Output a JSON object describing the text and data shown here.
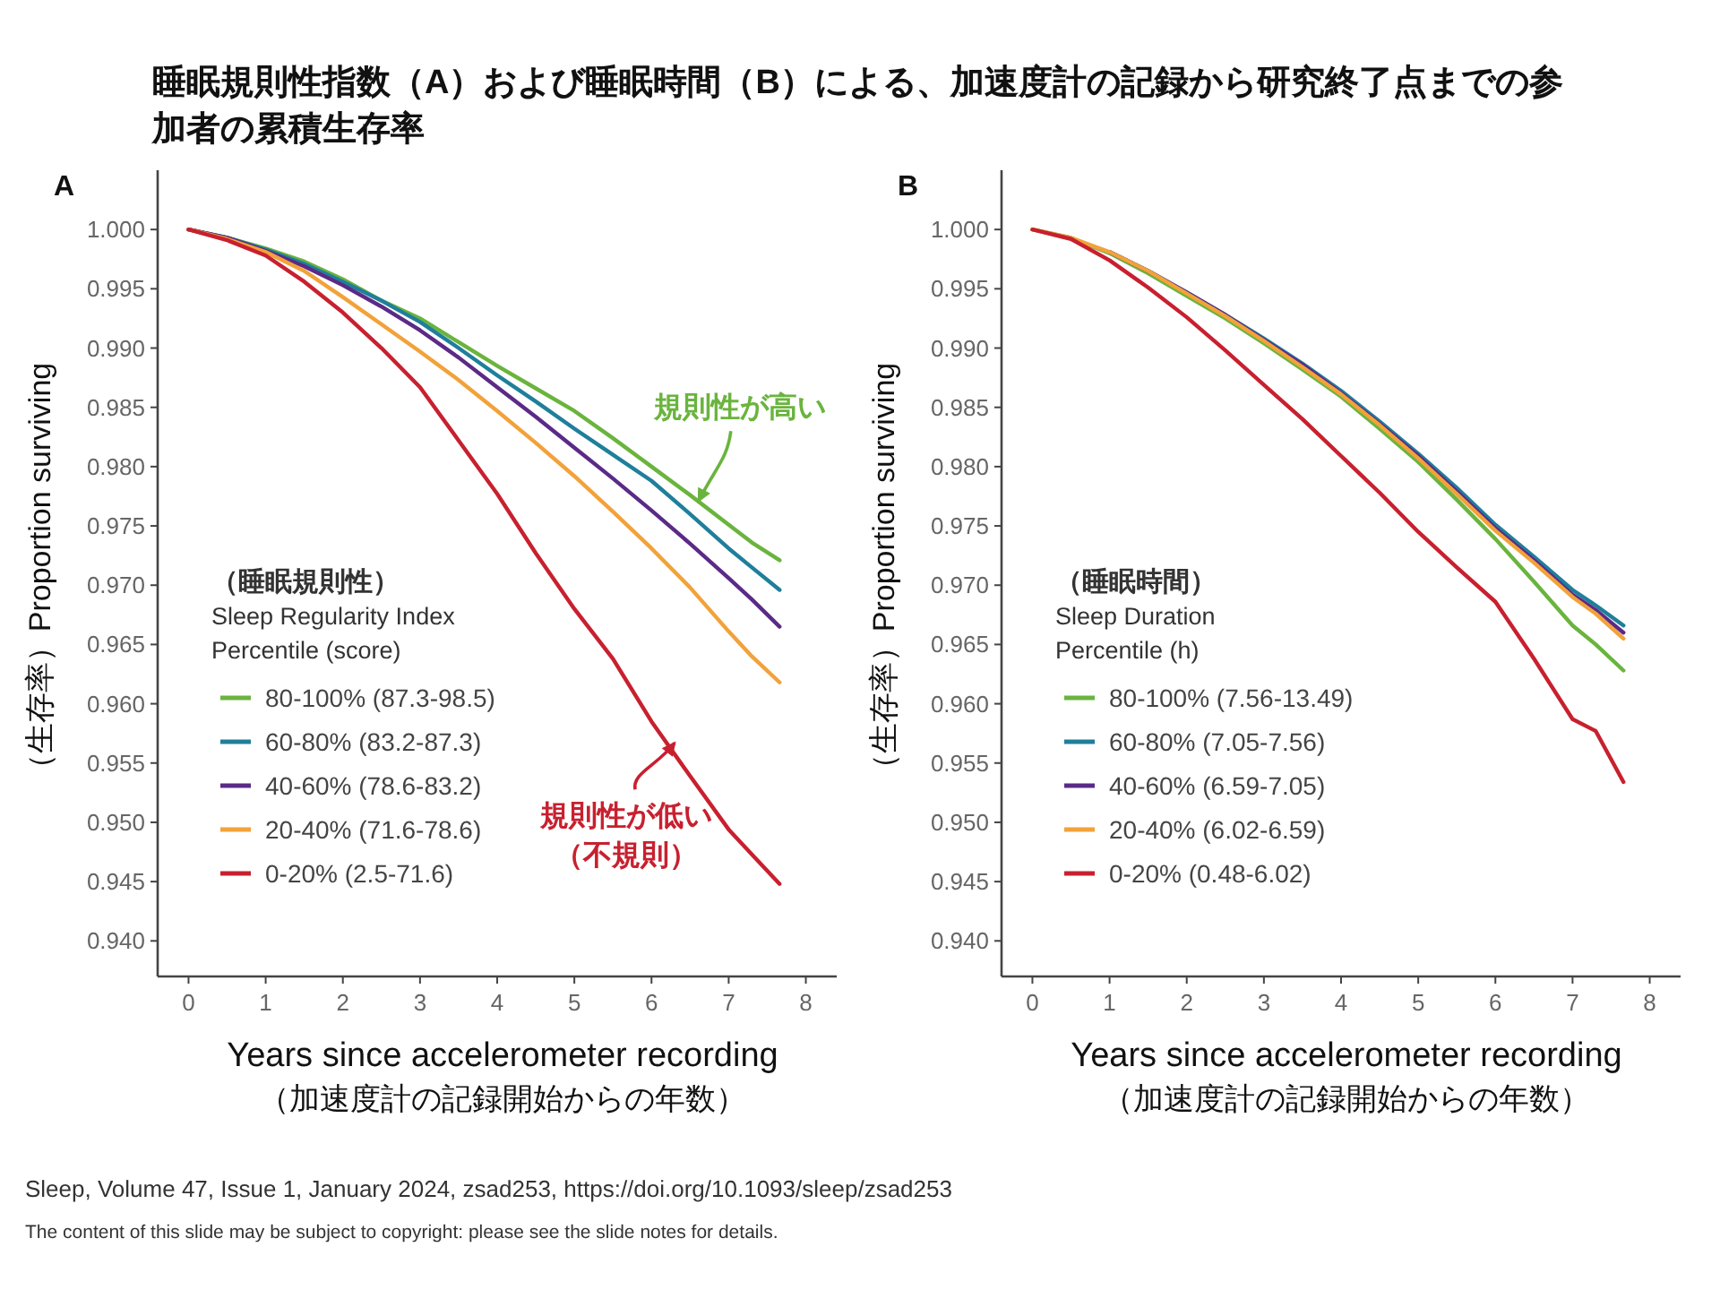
{
  "chart_data": [
    {
      "type": "line",
      "title": "睡眠規則性指数（A）および睡眠時間（B）による、加速度計の記録から研究終了点までの参加者の累積生存率",
      "subtitle": "A",
      "xlabel": "Years since accelerometer recording\n（加速度計の記録開始からの年数）",
      "ylabel": "（生存率）Proportion surviving",
      "legend_title": "（睡眠規則性）\nSleep Regularity Index\nPercentile (score)",
      "legend": "bottom left",
      "grid": false,
      "marker": "none",
      "line_style": "solid",
      "xlim": [
        -0.4,
        8.4
      ],
      "xticks": [
        0,
        1,
        2,
        3,
        4,
        5,
        6,
        7,
        8
      ],
      "ylim": [
        0.937,
        1.005
      ],
      "yticks": [
        {
          "value": 1.0,
          "label": "1.000"
        },
        0.995,
        {
          "value": 0.99,
          "label": "0.990"
        },
        0.985,
        {
          "value": 0.98,
          "label": "0.980"
        },
        0.975,
        {
          "value": 0.97,
          "label": "0.970"
        },
        0.965,
        {
          "value": 0.96,
          "label": "0.960"
        },
        0.955,
        {
          "value": 0.95,
          "label": "0.950"
        },
        0.945,
        {
          "value": 0.94,
          "label": "0.940"
        }
      ],
      "x": [
        0,
        0.5,
        1,
        1.5,
        2,
        2.5,
        3,
        3.5,
        4,
        4.5,
        5,
        5.5,
        6,
        6.5,
        7,
        7.3,
        7.66
      ],
      "series": [
        {
          "name": "80-100% (87.3-98.5)",
          "color": "#6ab43e",
          "values": [
            1.0,
            0.9993,
            0.9984,
            0.9973,
            0.9958,
            0.994,
            0.9925,
            0.9905,
            0.9885,
            0.9866,
            0.9847,
            0.9824,
            0.98,
            0.9776,
            0.9751,
            0.9736,
            0.9721
          ]
        },
        {
          "name": "60-80% (83.2-87.3)",
          "color": "#1f7f9b",
          "values": [
            1.0,
            0.9993,
            0.9983,
            0.9971,
            0.9956,
            0.994,
            0.9922,
            0.99,
            0.9877,
            0.9855,
            0.9832,
            0.981,
            0.9788,
            0.976,
            0.9731,
            0.9715,
            0.9696
          ]
        },
        {
          "name": "40-60% (78.6-83.2)",
          "color": "#5b2a86",
          "values": [
            1.0,
            0.9993,
            0.9982,
            0.9969,
            0.9953,
            0.9935,
            0.9915,
            0.9892,
            0.9867,
            0.9842,
            0.9816,
            0.979,
            0.9763,
            0.9735,
            0.9706,
            0.9688,
            0.9665
          ]
        },
        {
          "name": "20-40% (71.6-78.6)",
          "color": "#f2a23a",
          "values": [
            1.0,
            0.9992,
            0.9981,
            0.9965,
            0.9943,
            0.992,
            0.9897,
            0.9873,
            0.9847,
            0.982,
            0.9792,
            0.9762,
            0.9731,
            0.9698,
            0.9661,
            0.964,
            0.9618
          ]
        },
        {
          "name": "0-20% (2.5-71.6)",
          "color": "#c8202f",
          "values": [
            1.0,
            0.9991,
            0.9978,
            0.9956,
            0.993,
            0.99,
            0.9867,
            0.9822,
            0.9777,
            0.9727,
            0.968,
            0.9638,
            0.9585,
            0.9539,
            0.9494,
            0.9473,
            0.9448
          ]
        }
      ],
      "annotations": [
        {
          "text": "規則性が高い",
          "x": 6.61,
          "y": 0.9771
        },
        {
          "text": "規則性が低い（不規則）",
          "x": 6.3,
          "y": 0.9567
        }
      ]
    },
    {
      "type": "line",
      "subtitle": "B",
      "xlabel": "Years since accelerometer recording\n（加速度計の記録開始からの年数）",
      "ylabel": "（生存率）Proportion surviving",
      "legend_title": "（睡眠時間）\nSleep Duration\nPercentile (h)",
      "legend": "bottom left",
      "grid": false,
      "marker": "none",
      "line_style": "solid",
      "xlim": [
        -0.4,
        8.4
      ],
      "xticks": [
        0,
        1,
        2,
        3,
        4,
        5,
        6,
        7,
        8
      ],
      "ylim": [
        0.937,
        1.005
      ],
      "yticks": [
        {
          "value": 1.0,
          "label": "1.000"
        },
        0.995,
        {
          "value": 0.99,
          "label": "0.990"
        },
        0.985,
        {
          "value": 0.98,
          "label": "0.980"
        },
        0.975,
        {
          "value": 0.97,
          "label": "0.970"
        },
        0.965,
        {
          "value": 0.96,
          "label": "0.960"
        },
        0.955,
        {
          "value": 0.95,
          "label": "0.950"
        },
        0.945,
        {
          "value": 0.94,
          "label": "0.940"
        }
      ],
      "x": [
        0,
        0.5,
        1,
        1.5,
        2,
        2.5,
        3,
        3.5,
        4,
        4.5,
        5,
        5.5,
        6,
        6.5,
        7,
        7.3,
        7.66
      ],
      "series": [
        {
          "name": "80-100% (7.56-13.49)",
          "color": "#6ab43e",
          "values": [
            1.0,
            0.9993,
            0.998,
            0.9963,
            0.9944,
            0.9925,
            0.9904,
            0.9882,
            0.9859,
            0.9832,
            0.9804,
            0.9772,
            0.9739,
            0.9703,
            0.9666,
            0.965,
            0.9628
          ]
        },
        {
          "name": "60-80% (7.05-7.56)",
          "color": "#1f7f9b",
          "values": [
            null,
            null,
            0.9981,
            0.9965,
            0.9947,
            0.9928,
            0.9908,
            0.9887,
            0.9864,
            0.9838,
            0.9811,
            0.9782,
            0.9751,
            0.9724,
            0.9696,
            0.9683,
            0.9666
          ]
        },
        {
          "name": "40-60% (6.59-7.05)",
          "color": "#5b2a86",
          "values": [
            null,
            null,
            0.9981,
            0.9965,
            0.9947,
            0.9928,
            0.9907,
            0.9886,
            0.9862,
            0.9836,
            0.9809,
            0.9779,
            0.9748,
            0.9721,
            0.9692,
            0.9679,
            0.966
          ]
        },
        {
          "name": "20-40% (6.02-6.59)",
          "color": "#f2a23a",
          "values": [
            1.0,
            0.9993,
            0.9981,
            0.9965,
            0.9946,
            0.9927,
            0.9906,
            0.9884,
            0.9861,
            0.9835,
            0.9807,
            0.9777,
            0.9746,
            0.9719,
            0.969,
            0.9676,
            0.9655
          ]
        },
        {
          "name": "0-20% (0.48-6.02)",
          "color": "#c8202f",
          "values": [
            1.0,
            0.9992,
            0.9974,
            0.9951,
            0.9926,
            0.9898,
            0.9869,
            0.984,
            0.9809,
            0.9778,
            0.9745,
            0.9715,
            0.9686,
            0.9638,
            0.9587,
            0.9577,
            0.9534
          ]
        }
      ],
      "annotations": [
        "Sleep, Volume 47, Issue 1, January 2024, zsad253, https://doi.org/10.1093/sleep/zsad253",
        "The content of this slide may be subject to copyright: please see the slide notes for details."
      ]
    }
  ]
}
